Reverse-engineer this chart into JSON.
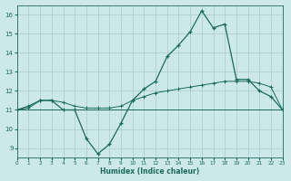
{
  "xlabel": "Humidex (Indice chaleur)",
  "xlim": [
    0,
    23
  ],
  "ylim": [
    8.5,
    16.5
  ],
  "yticks": [
    9,
    10,
    11,
    12,
    13,
    14,
    15,
    16
  ],
  "xticks": [
    0,
    1,
    2,
    3,
    4,
    5,
    6,
    7,
    8,
    9,
    10,
    11,
    12,
    13,
    14,
    15,
    16,
    17,
    18,
    19,
    20,
    21,
    22,
    23
  ],
  "background_color": "#cce8e8",
  "grid_color": "#aacccc",
  "line_color": "#1a6b5a",
  "line1_x": [
    0,
    1,
    2,
    3,
    4,
    5,
    6,
    7,
    8,
    9,
    10,
    11,
    12,
    13,
    14,
    15,
    16,
    17,
    18,
    19,
    20,
    21,
    22,
    23
  ],
  "line1_y": [
    11.0,
    11.2,
    11.5,
    11.5,
    11.0,
    11.0,
    9.5,
    8.7,
    9.2,
    10.3,
    11.5,
    12.1,
    12.5,
    13.8,
    14.4,
    15.1,
    16.2,
    15.3,
    15.5,
    12.6,
    12.6,
    12.0,
    11.7,
    11.0
  ],
  "line2_x": [
    0,
    1,
    2,
    3,
    4,
    5,
    6,
    7,
    8,
    9,
    10,
    11,
    12,
    13,
    14,
    15,
    16,
    17,
    18,
    19,
    20,
    21,
    22,
    23
  ],
  "line2_y": [
    11.0,
    11.1,
    11.5,
    11.5,
    11.4,
    11.2,
    11.1,
    11.1,
    11.1,
    11.2,
    11.5,
    11.7,
    11.9,
    12.0,
    12.1,
    12.2,
    12.3,
    12.4,
    12.5,
    12.5,
    12.5,
    12.4,
    12.2,
    11.0
  ],
  "line3_x": [
    0,
    1,
    2,
    3,
    4,
    5,
    6,
    7,
    8,
    9,
    10,
    11,
    12,
    13,
    14,
    15,
    16,
    17,
    18,
    19,
    20,
    21,
    22,
    23
  ],
  "line3_y": [
    11.0,
    11.0,
    11.0,
    11.0,
    11.0,
    11.0,
    11.0,
    11.0,
    11.0,
    11.0,
    11.0,
    11.0,
    11.0,
    11.0,
    11.0,
    11.0,
    11.0,
    11.0,
    11.0,
    11.0,
    11.0,
    11.0,
    11.0,
    11.0
  ]
}
